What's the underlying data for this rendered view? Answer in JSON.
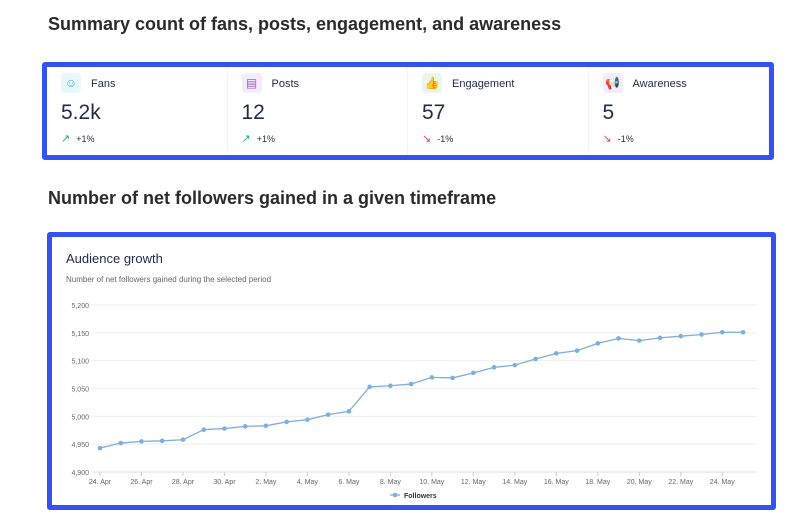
{
  "section1_title": "Summary count of fans, posts, engagement, and awareness",
  "section2_title": "Number of net followers gained in a given timeframe",
  "cards": [
    {
      "label": "Fans",
      "value": "5.2k",
      "trend": "+1%",
      "direction": "up",
      "icon": "users-icon",
      "icon_color": "#3fb6c9",
      "icon_bg": "#e8f7fa"
    },
    {
      "label": "Posts",
      "value": "12",
      "trend": "+1%",
      "direction": "up",
      "icon": "document-icon",
      "icon_color": "#9b5cc9",
      "icon_bg": "#f4ecfa"
    },
    {
      "label": "Engagement",
      "value": "57",
      "trend": "-1%",
      "direction": "down",
      "icon": "thumbs-up-icon",
      "icon_color": "#4caf50",
      "icon_bg": "#eaf6ea"
    },
    {
      "label": "Awareness",
      "value": "5",
      "trend": "-1%",
      "direction": "down",
      "icon": "megaphone-icon",
      "icon_color": "#a05cc9",
      "icon_bg": "#f4ecfa"
    }
  ],
  "chart": {
    "title": "Audience growth",
    "subtitle": "Number of net followers gained during the selected period"
  },
  "chart_data": {
    "type": "line",
    "x": [
      "24. Apr",
      "25. Apr",
      "26. Apr",
      "27. Apr",
      "28. Apr",
      "29. Apr",
      "30. Apr",
      "1. May",
      "2. May",
      "3. May",
      "4. May",
      "5. May",
      "6. May",
      "7. May",
      "8. May",
      "9. May",
      "10. May",
      "11. May",
      "12. May",
      "13. May",
      "14. May",
      "15. May",
      "16. May",
      "17. May",
      "18. May",
      "19. May",
      "20. May",
      "21. May",
      "22. May",
      "23. May",
      "24. May",
      "25. May"
    ],
    "x_tick_labels": [
      "24. Apr",
      "26. Apr",
      "28. Apr",
      "30. Apr",
      "2. May",
      "4. May",
      "6. May",
      "8. May",
      "10. May",
      "12. May",
      "14. May",
      "16. May",
      "18. May",
      "20. May",
      "22. May",
      "24. May"
    ],
    "series": [
      {
        "name": "Followers",
        "color": "#7eaedb",
        "values": [
          4943,
          4952,
          4955,
          4956,
          4958,
          4976,
          4978,
          4982,
          4983,
          4990,
          4994,
          5003,
          5009,
          5053,
          5055,
          5058,
          5070,
          5069,
          5078,
          5088,
          5092,
          5103,
          5113,
          5118,
          5131,
          5140,
          5136,
          5141,
          5144,
          5147,
          5151,
          5151
        ]
      }
    ],
    "y_ticks": [
      "4,900",
      "4,950",
      "5,000",
      "5,050",
      "5,100",
      "5,150",
      "5,200"
    ],
    "ylim": [
      4900,
      5200
    ],
    "grid": true,
    "legend": "bottom"
  }
}
